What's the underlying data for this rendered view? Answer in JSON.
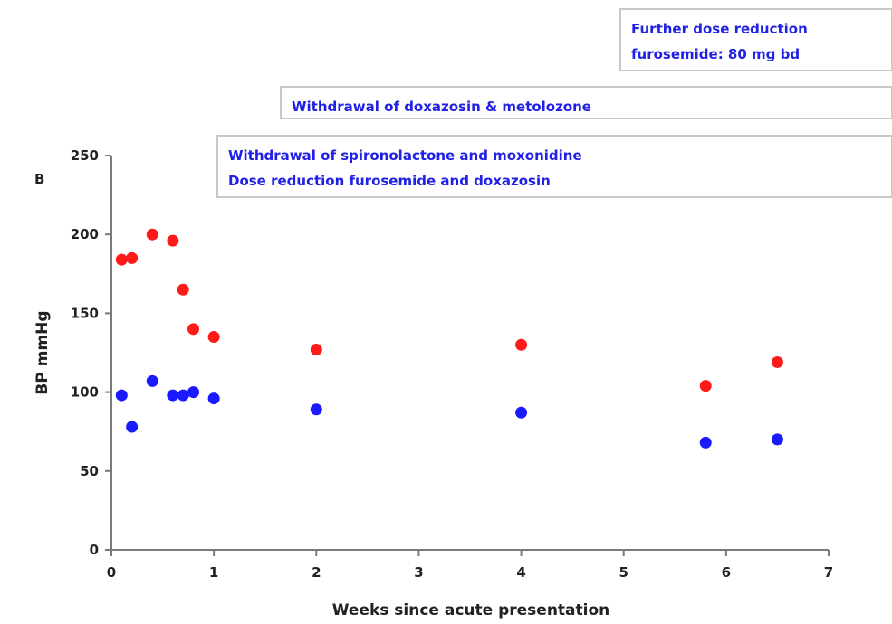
{
  "chart_data": {
    "type": "scatter",
    "panel_label": "B",
    "xlabel": "Weeks since acute presentation",
    "ylabel": "BP mmHg",
    "xlim": [
      0,
      7
    ],
    "ylim": [
      0,
      250
    ],
    "xticks": [
      0,
      1,
      2,
      3,
      4,
      5,
      6,
      7
    ],
    "yticks": [
      0,
      50,
      100,
      150,
      200,
      250
    ],
    "grid": false,
    "series": [
      {
        "color": "#ff1a1a",
        "points": [
          {
            "x": 0.1,
            "y": 184
          },
          {
            "x": 0.2,
            "y": 185
          },
          {
            "x": 0.4,
            "y": 200
          },
          {
            "x": 0.6,
            "y": 196
          },
          {
            "x": 0.7,
            "y": 165
          },
          {
            "x": 0.8,
            "y": 140
          },
          {
            "x": 1.0,
            "y": 135
          },
          {
            "x": 2.0,
            "y": 127
          },
          {
            "x": 4.0,
            "y": 130
          },
          {
            "x": 5.8,
            "y": 104
          },
          {
            "x": 6.5,
            "y": 119
          }
        ]
      },
      {
        "color": "#1a1aff",
        "points": [
          {
            "x": 0.1,
            "y": 98
          },
          {
            "x": 0.2,
            "y": 78
          },
          {
            "x": 0.4,
            "y": 107
          },
          {
            "x": 0.6,
            "y": 98
          },
          {
            "x": 0.7,
            "y": 98
          },
          {
            "x": 0.8,
            "y": 100
          },
          {
            "x": 1.0,
            "y": 96
          },
          {
            "x": 2.0,
            "y": 89
          },
          {
            "x": 4.0,
            "y": 87
          },
          {
            "x": 5.8,
            "y": 68
          },
          {
            "x": 6.5,
            "y": 70
          }
        ]
      }
    ],
    "annotations": [
      {
        "lines": [
          "Further dose reduction",
          "furosemide: 80 mg bd"
        ]
      },
      {
        "lines": [
          "Withdrawal of doxazosin & metolozone"
        ]
      },
      {
        "lines": [
          "Withdrawal of spironolactone and moxonidine",
          "Dose reduction furosemide and doxazosin"
        ]
      }
    ]
  }
}
